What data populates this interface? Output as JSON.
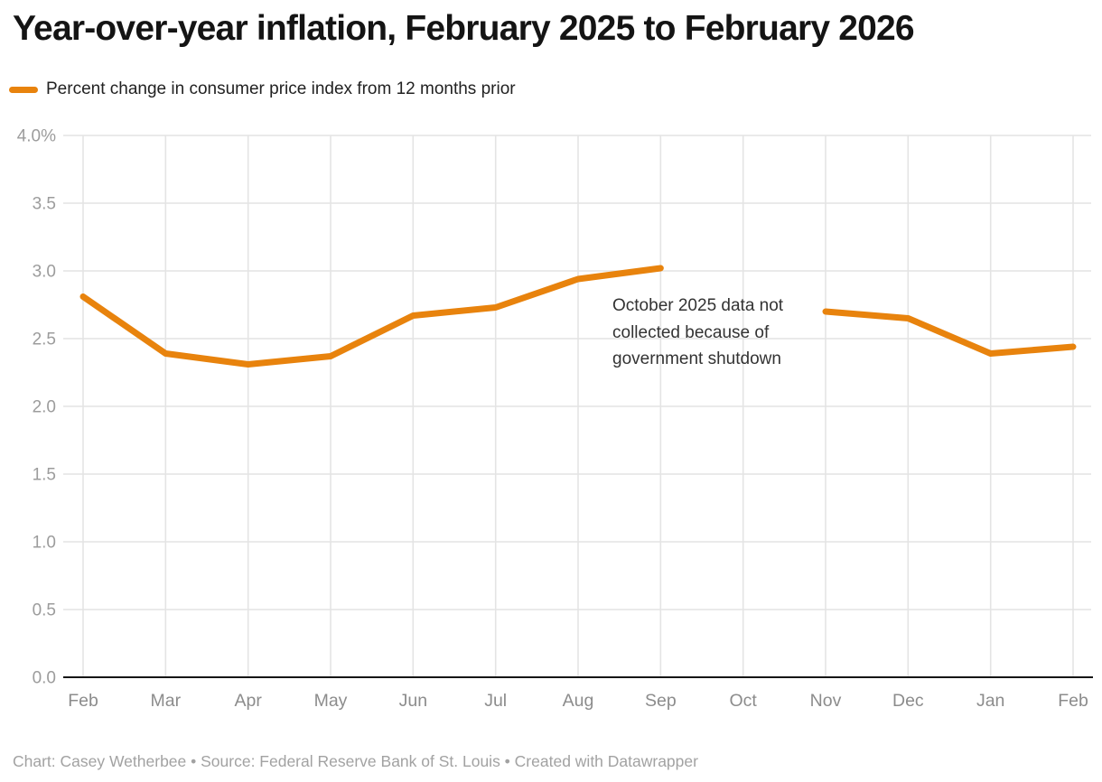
{
  "header": {
    "title": "Year-over-year inflation, February 2025 to February 2026",
    "legend": {
      "label": "Percent change in consumer price index from 12 months prior",
      "swatch_color": "#E8830D"
    }
  },
  "chart_data": {
    "type": "line",
    "title": "Year-over-year inflation, February 2025 to February 2026",
    "categories": [
      "Feb",
      "Mar",
      "Apr",
      "May",
      "Jun",
      "Jul",
      "Aug",
      "Sep",
      "Oct",
      "Nov",
      "Dec",
      "Jan",
      "Feb"
    ],
    "series": [
      {
        "name": "Percent change in consumer price index from 12 months prior",
        "color": "#E8830D",
        "values": [
          2.81,
          2.39,
          2.31,
          2.37,
          2.67,
          2.73,
          2.94,
          3.02,
          null,
          2.7,
          2.65,
          2.39,
          2.44
        ]
      }
    ],
    "missing_data_months": [
      "Oct"
    ],
    "ylim": [
      0,
      4
    ],
    "y_tick_values": [
      0,
      0.5,
      1,
      1.5,
      2,
      2.5,
      3,
      3.5,
      4
    ],
    "y_tick_labels": [
      "0.0",
      "0.5",
      "1.0",
      "1.5",
      "2.0",
      "2.5",
      "3.0",
      "3.5",
      "4.0%"
    ],
    "grid": true,
    "legend_position": "top-left",
    "annotation": {
      "text": "October 2025 data not\ncollected because of\ngovernment shutdown"
    },
    "colors": {
      "line": "#E8830D",
      "gridline": "#e4e4e4",
      "axis_line": "#161616",
      "y_tick_text": "#9c9c9c",
      "x_tick_text": "#8c8c8c",
      "annotation_text": "#333333"
    }
  },
  "footer": {
    "text": "Chart: Casey Wetherbee • Source: Federal Reserve Bank of St. Louis • Created with Datawrapper"
  }
}
